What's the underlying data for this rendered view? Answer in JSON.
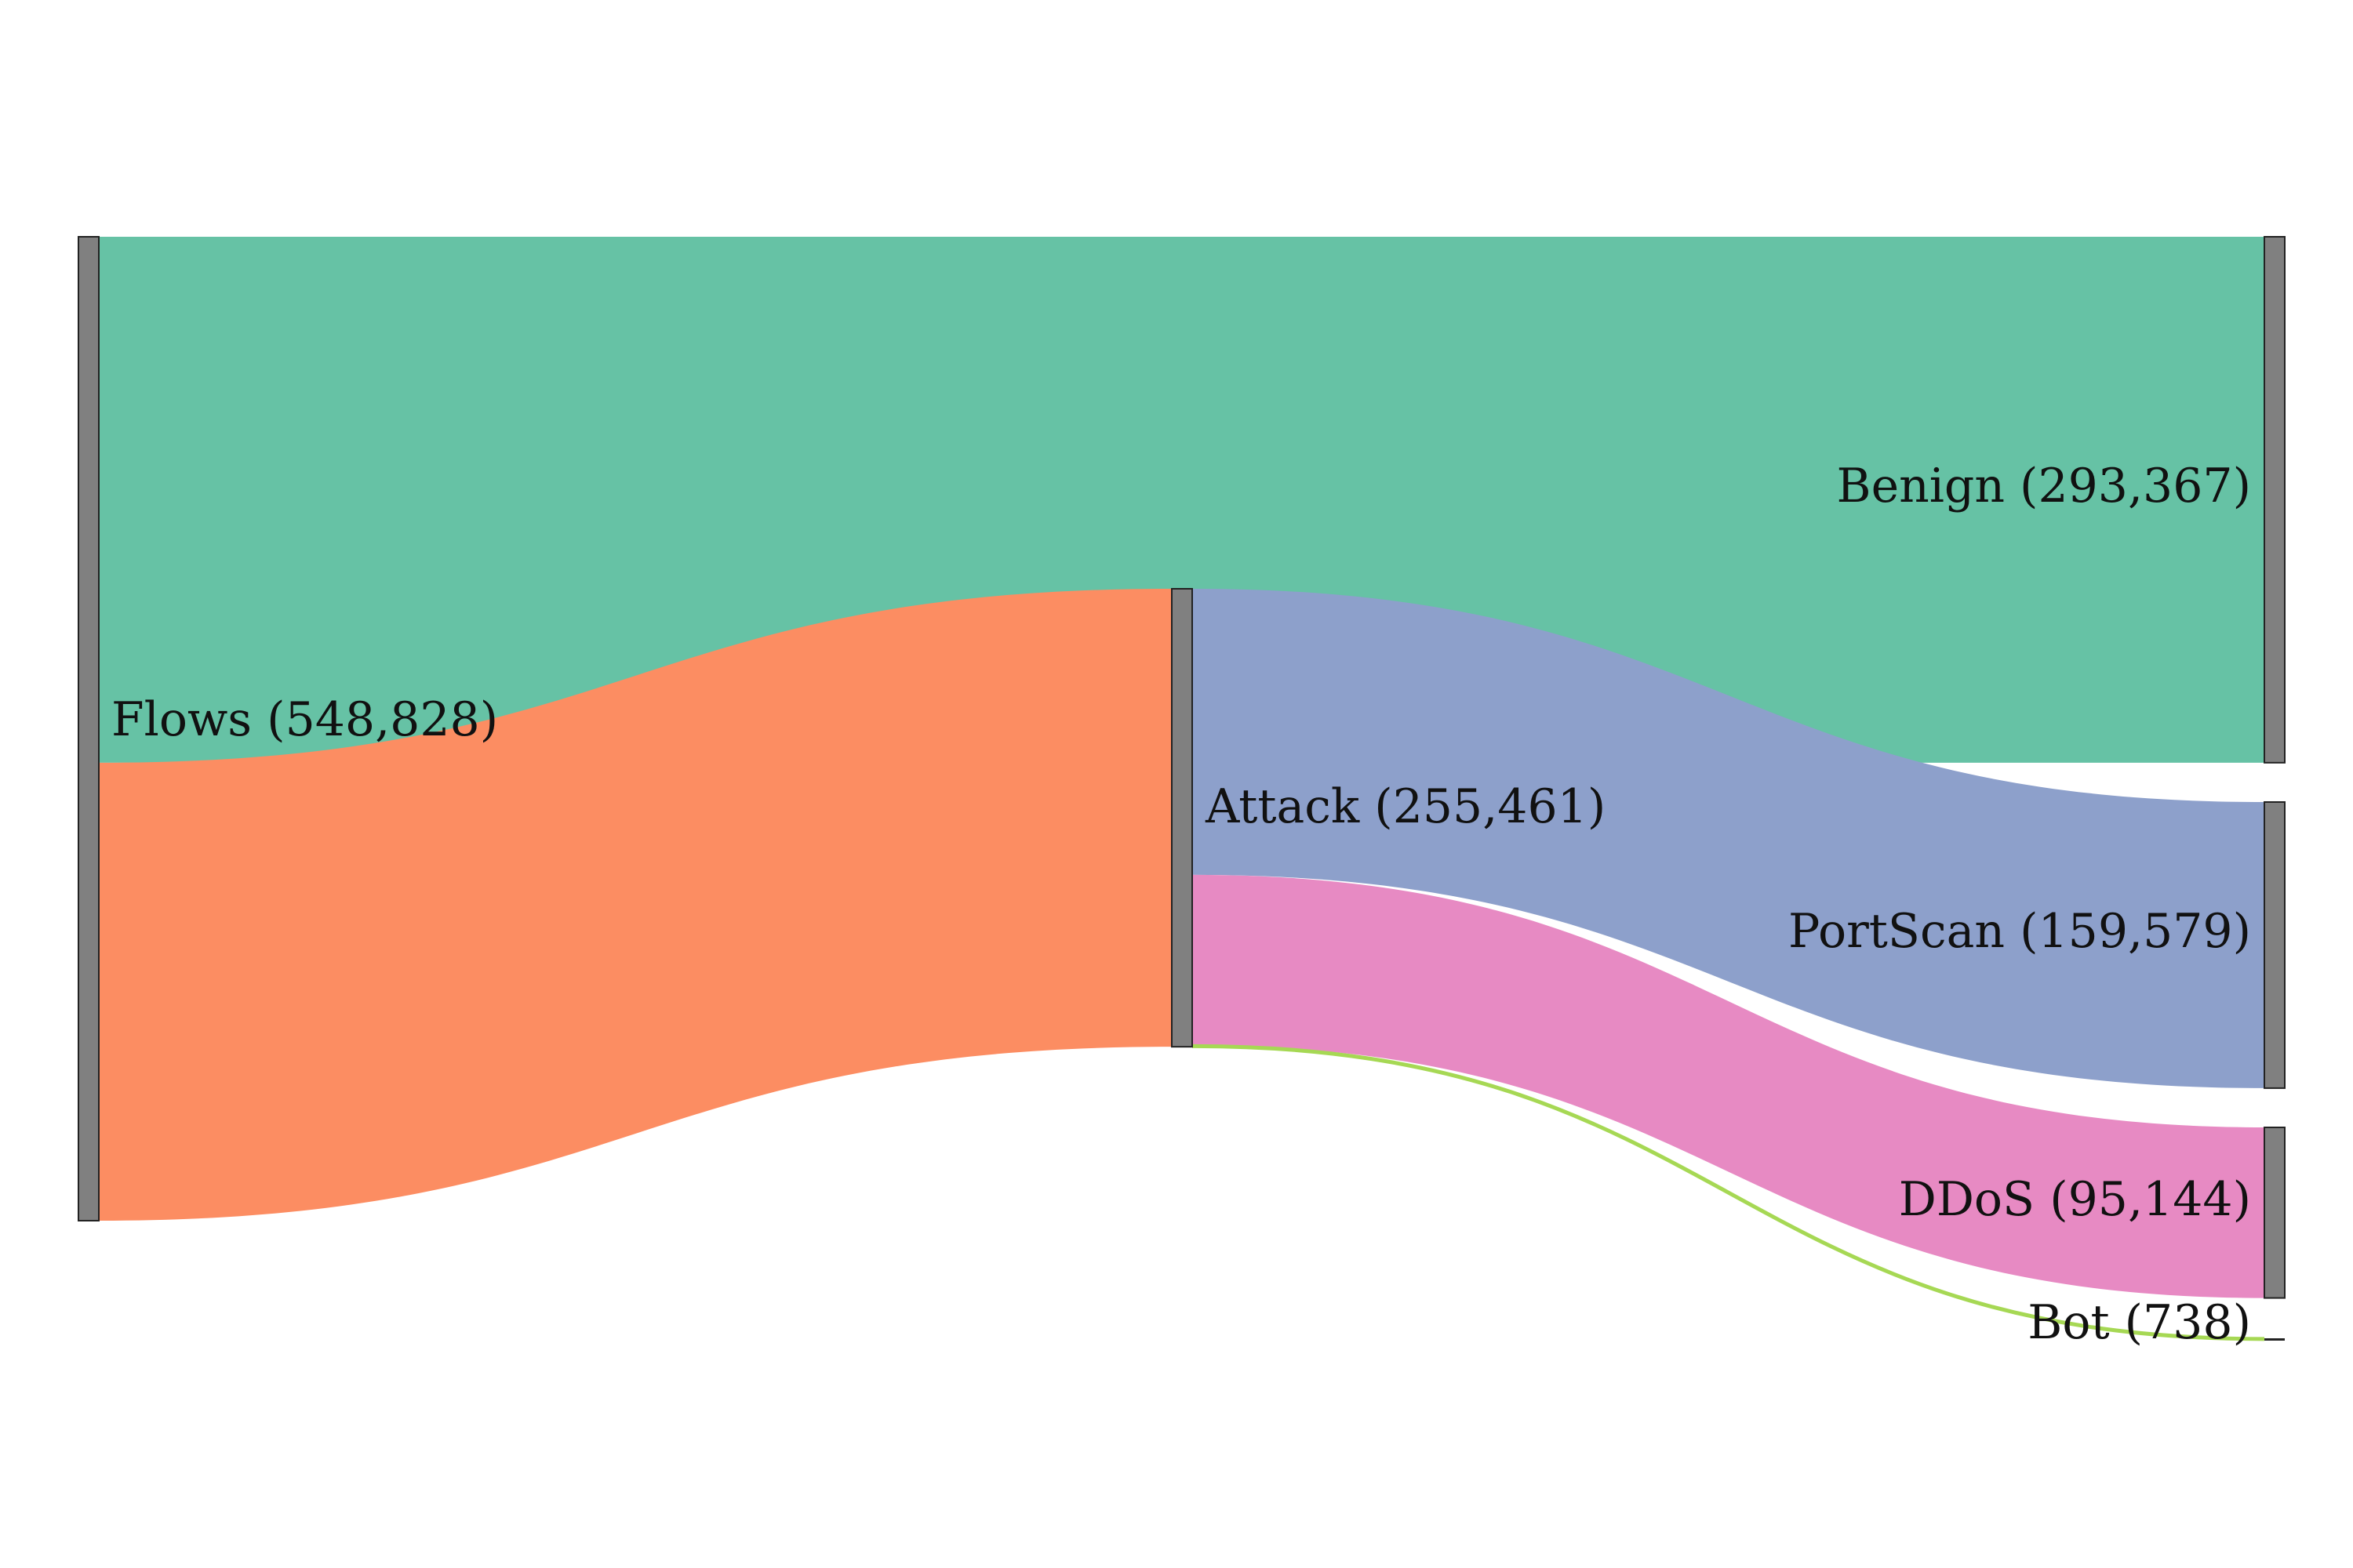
{
  "nodes": [
    {
      "id": "flows",
      "label": "Flows (548,828)",
      "value": 548828,
      "column": 0
    },
    {
      "id": "attack",
      "label": "Attack (255,461)",
      "value": 255461,
      "column": 1
    },
    {
      "id": "benign",
      "label": "Benign (293,367)",
      "value": 293367,
      "column": 2
    },
    {
      "id": "portscan",
      "label": "PortScan (159,579)",
      "value": 159579,
      "column": 2
    },
    {
      "id": "ddos",
      "label": "DDoS (95,144)",
      "value": 95144,
      "column": 2
    },
    {
      "id": "bot",
      "label": "Bot (738)",
      "value": 738,
      "column": 2
    }
  ],
  "links": [
    {
      "source": "flows",
      "target": "benign",
      "value": 293367,
      "color": "#66c2a5"
    },
    {
      "source": "flows",
      "target": "attack",
      "value": 255461,
      "color": "#fc8d62"
    },
    {
      "source": "attack",
      "target": "portscan",
      "value": 159579,
      "color": "#8da0cb"
    },
    {
      "source": "attack",
      "target": "ddos",
      "value": 95144,
      "color": "#e78ac3"
    },
    {
      "source": "attack",
      "target": "bot",
      "value": 738,
      "color": "#a6d854"
    }
  ],
  "node_color": "#808080"
}
